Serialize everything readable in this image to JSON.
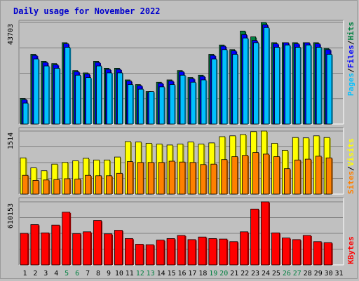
{
  "title": "Daily usage for November 2022",
  "colors": {
    "title": "#0000cc",
    "hits": "#008040",
    "files": "#0000ff",
    "pages": "#00c0ff",
    "visits": "#ffff00",
    "sites": "#ff8000",
    "kbytes": "#ff0000",
    "weekend_day": "#008040",
    "weekday": "#000000",
    "grid": "#808080"
  },
  "panels": {
    "top": {
      "max_label": "43703",
      "series_labels": [
        "Pages",
        "Files",
        "Hits"
      ]
    },
    "middle": {
      "max_label": "1514",
      "series_labels": [
        "Sites",
        "Visits"
      ]
    },
    "bottom": {
      "max_label": "610153",
      "series_labels": [
        "KBytes"
      ]
    }
  },
  "chart_data": {
    "type": "bar",
    "title": "Daily usage for November 2022",
    "categories": [
      "1",
      "2",
      "3",
      "4",
      "5",
      "6",
      "7",
      "8",
      "9",
      "10",
      "11",
      "12",
      "13",
      "14",
      "15",
      "16",
      "17",
      "18",
      "19",
      "20",
      "21",
      "22",
      "23",
      "24",
      "25",
      "26",
      "27",
      "28",
      "29",
      "30",
      "31"
    ],
    "weekend_days": [
      "5",
      "6",
      "12",
      "13",
      "19",
      "20",
      "26",
      "27"
    ],
    "panels": [
      {
        "name": "top",
        "ylim": [
          0,
          43703
        ],
        "series": [
          {
            "name": "Hits",
            "values": [
              11000,
              30000,
              27000,
              26000,
              35000,
              23000,
              22000,
              27000,
              24000,
              24000,
              19000,
              17000,
              14000,
              18000,
              19000,
              23000,
              20000,
              21000,
              30000,
              34000,
              32000,
              40000,
              37500,
              43703,
              35000,
              35000,
              35000,
              35000,
              35000,
              32500,
              0
            ]
          },
          {
            "name": "Files",
            "values": [
              10500,
              29500,
              26500,
              25500,
              34500,
              22500,
              21500,
              26500,
              23500,
              23500,
              18500,
              16500,
              13500,
              17500,
              18500,
              22500,
              19500,
              20500,
              29500,
              33500,
              31500,
              38500,
              36000,
              42700,
              34500,
              35000,
              34500,
              35000,
              34500,
              32000,
              0
            ]
          },
          {
            "name": "Pages",
            "values": [
              9000,
              28000,
              25000,
              24000,
              33000,
              21000,
              20000,
              25000,
              22000,
              22000,
              17000,
              15000,
              14000,
              16000,
              17000,
              21000,
              18000,
              19000,
              28000,
              32000,
              30000,
              37000,
              35000,
              41500,
              33000,
              34000,
              33000,
              34000,
              33000,
              30000,
              0
            ]
          }
        ]
      },
      {
        "name": "middle",
        "ylim": [
          0,
          1514
        ],
        "series": [
          {
            "name": "Visits",
            "values": [
              870,
              630,
              560,
              720,
              760,
              800,
              860,
              820,
              820,
              890,
              1260,
              1250,
              1220,
              1200,
              1180,
              1200,
              1250,
              1200,
              1230,
              1380,
              1400,
              1430,
              1500,
              1514,
              1220,
              1050,
              1360,
              1350,
              1400,
              1360,
              0
            ]
          },
          {
            "name": "Sites",
            "values": [
              450,
              330,
              340,
              350,
              370,
              360,
              450,
              440,
              440,
              500,
              780,
              760,
              760,
              760,
              790,
              770,
              760,
              710,
              720,
              830,
              900,
              930,
              1000,
              960,
              900,
              610,
              820,
              840,
              910,
              870,
              0
            ]
          }
        ]
      },
      {
        "name": "bottom",
        "ylim": [
          0,
          610153
        ],
        "series": [
          {
            "name": "KBytes",
            "values": [
              305000,
              390000,
              310000,
              385000,
              510000,
              303000,
              320000,
              430000,
              300000,
              335000,
              255000,
              200000,
              195000,
              240000,
              255000,
              285000,
              245000,
              270000,
              255000,
              250000,
              225000,
              320000,
              540000,
              610153,
              310000,
              260000,
              245000,
              285000,
              225000,
              215000,
              0
            ]
          }
        ]
      }
    ]
  }
}
